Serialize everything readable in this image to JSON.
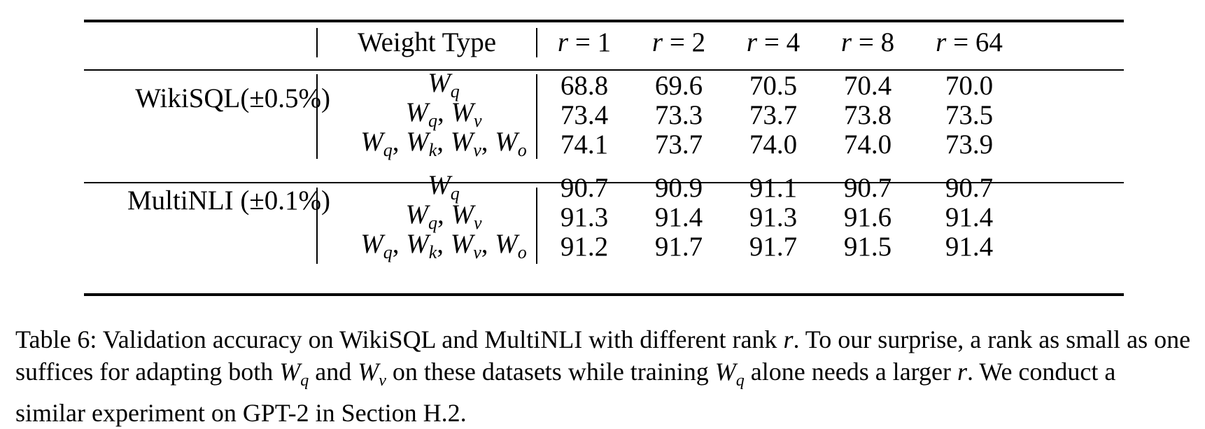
{
  "table": {
    "header": {
      "weight_type": "Weight Type",
      "ranks": [
        {
          "var": "r",
          "eq": " = ",
          "val": "1"
        },
        {
          "var": "r",
          "eq": " = ",
          "val": "2"
        },
        {
          "var": "r",
          "eq": " = ",
          "val": "4"
        },
        {
          "var": "r",
          "eq": " = ",
          "val": "8"
        },
        {
          "var": "r",
          "eq": " = ",
          "val": "64"
        }
      ]
    },
    "groups": [
      {
        "dataset": "WikiSQL(±0.5%)",
        "rows": [
          {
            "weights": [
              {
                "b": "W",
                "s": "q"
              }
            ],
            "values": [
              "68.8",
              "69.6",
              "70.5",
              "70.4",
              "70.0"
            ]
          },
          {
            "weights": [
              {
                "b": "W",
                "s": "q"
              },
              {
                "b": "W",
                "s": "v"
              }
            ],
            "values": [
              "73.4",
              "73.3",
              "73.7",
              "73.8",
              "73.5"
            ]
          },
          {
            "weights": [
              {
                "b": "W",
                "s": "q"
              },
              {
                "b": "W",
                "s": "k"
              },
              {
                "b": "W",
                "s": "v"
              },
              {
                "b": "W",
                "s": "o"
              }
            ],
            "values": [
              "74.1",
              "73.7",
              "74.0",
              "74.0",
              "73.9"
            ]
          }
        ]
      },
      {
        "dataset": "MultiNLI (±0.1%)",
        "rows": [
          {
            "weights": [
              {
                "b": "W",
                "s": "q"
              }
            ],
            "values": [
              "90.7",
              "90.9",
              "91.1",
              "90.7",
              "90.7"
            ]
          },
          {
            "weights": [
              {
                "b": "W",
                "s": "q"
              },
              {
                "b": "W",
                "s": "v"
              }
            ],
            "values": [
              "91.3",
              "91.4",
              "91.3",
              "91.6",
              "91.4"
            ]
          },
          {
            "weights": [
              {
                "b": "W",
                "s": "q"
              },
              {
                "b": "W",
                "s": "k"
              },
              {
                "b": "W",
                "s": "v"
              },
              {
                "b": "W",
                "s": "o"
              }
            ],
            "values": [
              "91.2",
              "91.7",
              "91.7",
              "91.5",
              "91.4"
            ]
          }
        ]
      }
    ]
  },
  "caption": "Table 6: Validation accuracy on WikiSQL and MultiNLI with different rank r. To our surprise, a rank as small as one suffices for adapting both Wq and Wv on these datasets while training Wq alone needs a larger r. We conduct a similar experiment on GPT-2 in Section H.2."
}
